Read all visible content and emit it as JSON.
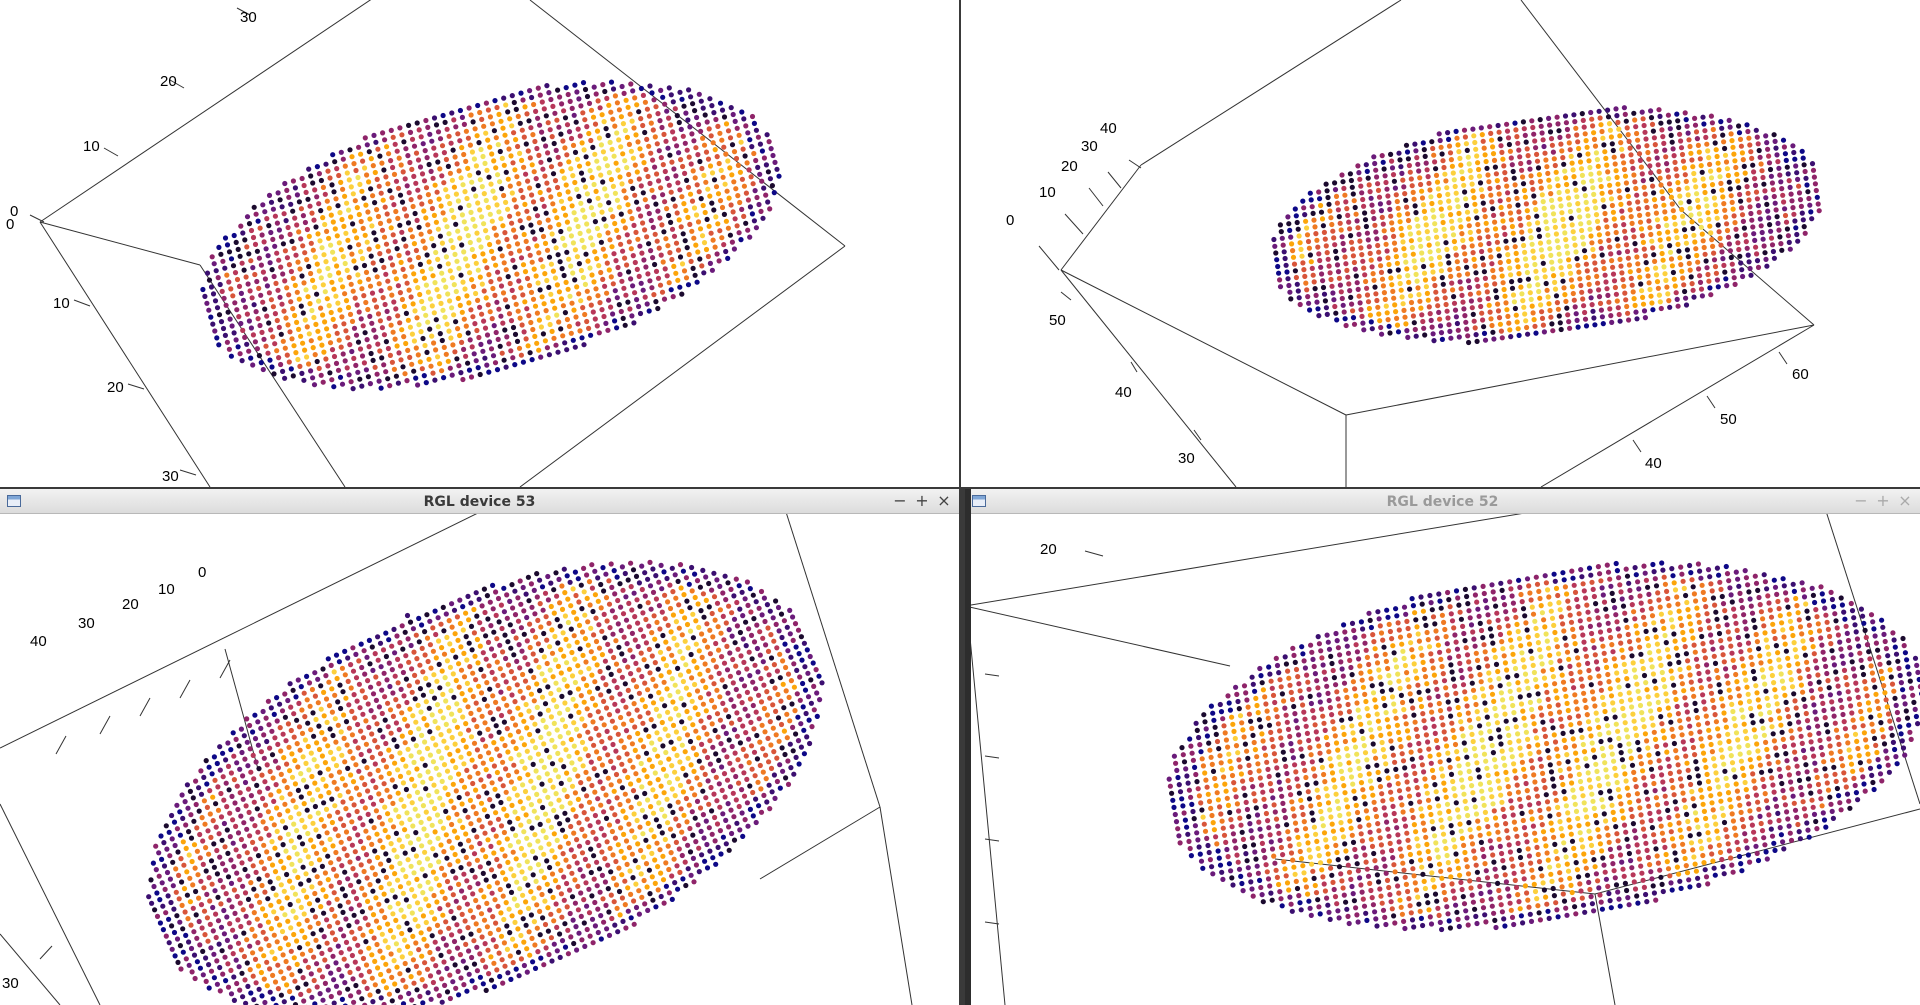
{
  "windows": [
    {
      "id": "tl",
      "title": "",
      "tick_labels": [
        "30",
        "20",
        "10",
        "0",
        "0",
        "10",
        "20",
        "30"
      ]
    },
    {
      "id": "tr",
      "title": "",
      "tick_labels": [
        "40",
        "30",
        "20",
        "10",
        "0",
        "50",
        "40",
        "30",
        "60",
        "50",
        "40"
      ]
    },
    {
      "id": "bl",
      "title": "RGL device 53",
      "active": true,
      "tick_labels": [
        "0",
        "10",
        "20",
        "30",
        "40",
        "30"
      ]
    },
    {
      "id": "br",
      "title": "RGL device 52",
      "active": false,
      "tick_labels": [
        "20"
      ]
    }
  ],
  "controls": {
    "minimize": "−",
    "maximize": "+",
    "close": "×"
  },
  "icons": {
    "window_icon": "window-icon"
  },
  "colors": {
    "palette": [
      "#0d0887",
      "#3b0f70",
      "#6a1b7a",
      "#8f2469",
      "#b73759",
      "#d8553a",
      "#ef7a22",
      "#fca50a",
      "#fcd03d",
      "#f0e35b"
    ],
    "dark_accent": "#1b0a2e"
  }
}
